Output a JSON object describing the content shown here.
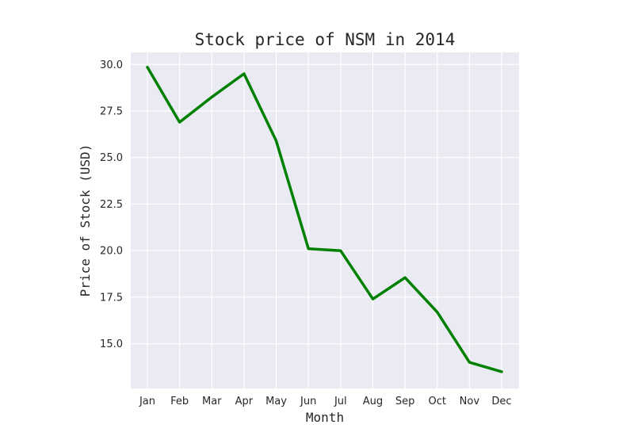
{
  "chart_data": {
    "type": "line",
    "title": "Stock price of NSM in 2014",
    "xlabel": "Month",
    "ylabel": "Price of Stock (USD)",
    "categories": [
      "Jan",
      "Feb",
      "Mar",
      "Apr",
      "May",
      "Jun",
      "Jul",
      "Aug",
      "Sep",
      "Oct",
      "Nov",
      "Dec"
    ],
    "series": [
      {
        "values": [
          29.85,
          26.9,
          28.25,
          29.5,
          25.9,
          20.1,
          20.0,
          17.4,
          18.55,
          16.7,
          14.0,
          13.5
        ]
      }
    ],
    "yticks": [
      "15.0",
      "17.5",
      "20.0",
      "22.5",
      "25.0",
      "27.5",
      "30.0"
    ],
    "ylim": [
      12.6,
      30.65
    ],
    "grid": true,
    "colors": {
      "line": "#008000",
      "plot_background": "#eaeaf2",
      "grid": "#ffffff"
    }
  }
}
